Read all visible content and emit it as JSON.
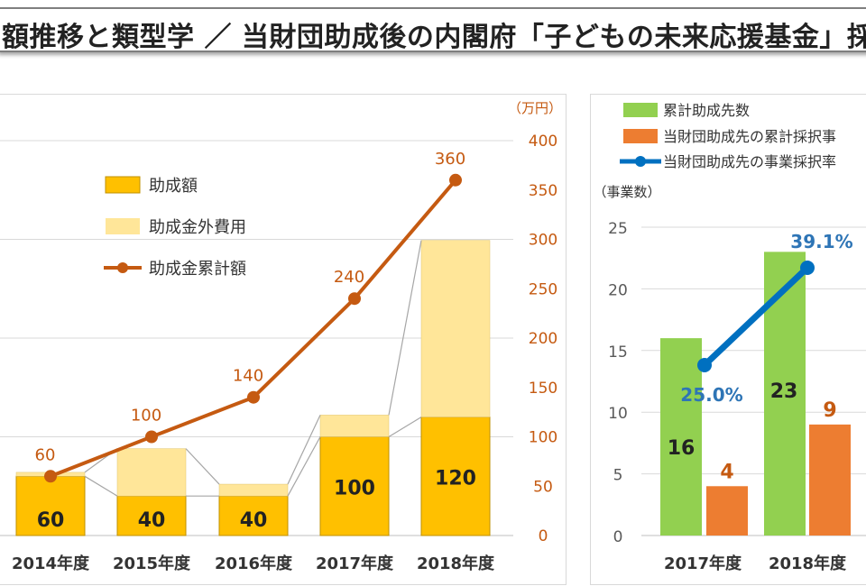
{
  "title": "額推移と類型学 ／ 当財団助成後の内閣府「子どもの未来応援基金」採",
  "chart_data": [
    {
      "type": "bar",
      "categories": [
        "2014年度",
        "2015年度",
        "2016年度",
        "2017年度",
        "2018年度"
      ],
      "series": [
        {
          "name": "助成額",
          "type": "bar",
          "stack": "a",
          "values": [
            60,
            40,
            40,
            100,
            120
          ],
          "color": "#ffc000"
        },
        {
          "name": "助成金外費用",
          "type": "bar",
          "stack": "a",
          "values": [
            4,
            48,
            12,
            22,
            179
          ],
          "color": "#ffe699"
        },
        {
          "name": "助成金累計額",
          "type": "line",
          "axis": "right",
          "values": [
            60,
            100,
            140,
            240,
            360
          ],
          "color": "#c55a11"
        }
      ],
      "bar_labels": [
        "60",
        "40",
        "40",
        "100",
        "120"
      ],
      "line_labels": [
        "60",
        "100",
        "140",
        "240",
        "360"
      ],
      "y2_unit": "（万円）",
      "y2_ticks": [
        "0",
        "50",
        "100",
        "150",
        "200",
        "250",
        "300",
        "350",
        "400"
      ],
      "y2lim": [
        0,
        400
      ],
      "grid": true,
      "legend_position": "top-left"
    },
    {
      "type": "bar",
      "categories": [
        "2017年度",
        "2018年度"
      ],
      "series": [
        {
          "name": "累計助成先数",
          "type": "bar",
          "values": [
            16,
            23
          ],
          "color": "#92d050"
        },
        {
          "name": "当財団助成先の累計採択事",
          "type": "bar",
          "values": [
            4,
            9
          ],
          "color": "#ed7d31"
        },
        {
          "name": "当財団助成先の事業採択率",
          "type": "line",
          "values": [
            25.0,
            39.1
          ],
          "color": "#0070c0"
        }
      ],
      "green_labels": [
        "16",
        "23"
      ],
      "orange_labels": [
        "4",
        "9"
      ],
      "rate_labels": [
        "25.0%",
        "39.1%"
      ],
      "y_unit": "（事業数）",
      "y_ticks": [
        "0",
        "5",
        "10",
        "15",
        "20",
        "25"
      ],
      "ylim": [
        0,
        25
      ],
      "grid": true,
      "legend_position": "top"
    }
  ]
}
